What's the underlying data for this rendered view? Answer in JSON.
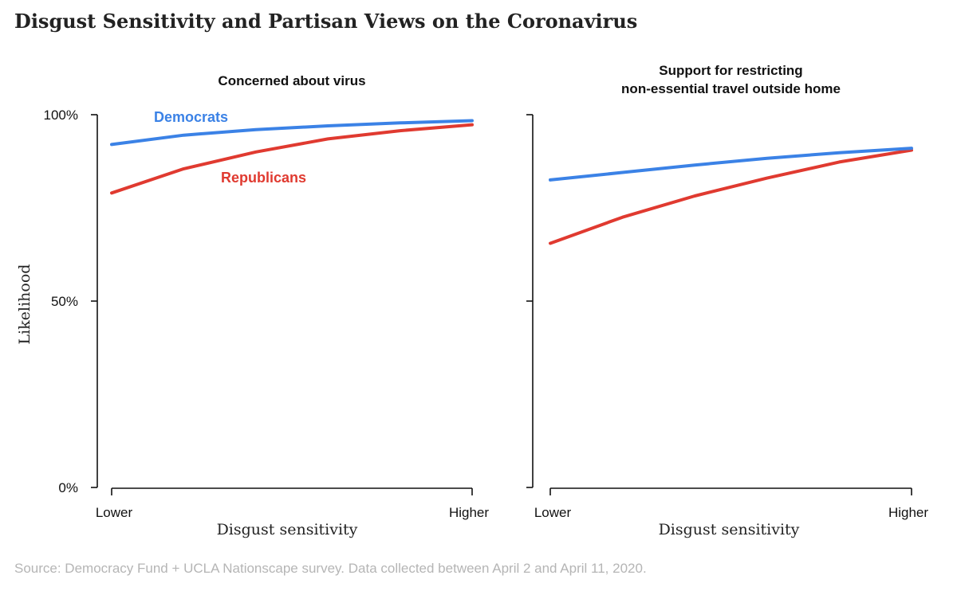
{
  "title": "Disgust Sensitivity and Partisan Views on the Coronavirus",
  "source": "Source: Democracy Fund + UCLA Nationscape survey. Data collected between April 2 and April 11, 2020.",
  "colors": {
    "democrats": "#3b82e6",
    "republicans": "#e03a30"
  },
  "chart_data": [
    {
      "type": "line",
      "title": "Concerned about virus",
      "xlabel": "Disgust sensitivity",
      "ylabel": "Likelihood",
      "x_tick_labels": [
        "Lower",
        "Higher"
      ],
      "y_tick_labels": [
        "0%",
        "50%",
        "100%"
      ],
      "ylim": [
        0,
        100
      ],
      "xlim": [
        0,
        1
      ],
      "x": [
        0,
        0.2,
        0.4,
        0.6,
        0.8,
        1
      ],
      "series": [
        {
          "name": "Democrats",
          "values": [
            92,
            94.5,
            96,
            97,
            97.8,
            98.4
          ]
        },
        {
          "name": "Republicans",
          "values": [
            79,
            85.5,
            90,
            93.5,
            95.7,
            97.3
          ]
        }
      ]
    },
    {
      "type": "line",
      "title": "Support for restricting\nnon-essential travel outside home",
      "xlabel": "Disgust sensitivity",
      "ylabel": "",
      "x_tick_labels": [
        "Lower",
        "Higher"
      ],
      "y_tick_labels": [],
      "ylim": [
        0,
        100
      ],
      "xlim": [
        0,
        1
      ],
      "x": [
        0,
        0.2,
        0.4,
        0.6,
        0.8,
        1
      ],
      "series": [
        {
          "name": "Democrats",
          "values": [
            82.5,
            84.5,
            86.5,
            88.3,
            89.8,
            91
          ]
        },
        {
          "name": "Republicans",
          "values": [
            65.5,
            72.5,
            78.2,
            83,
            87.3,
            90.5
          ]
        }
      ]
    }
  ]
}
